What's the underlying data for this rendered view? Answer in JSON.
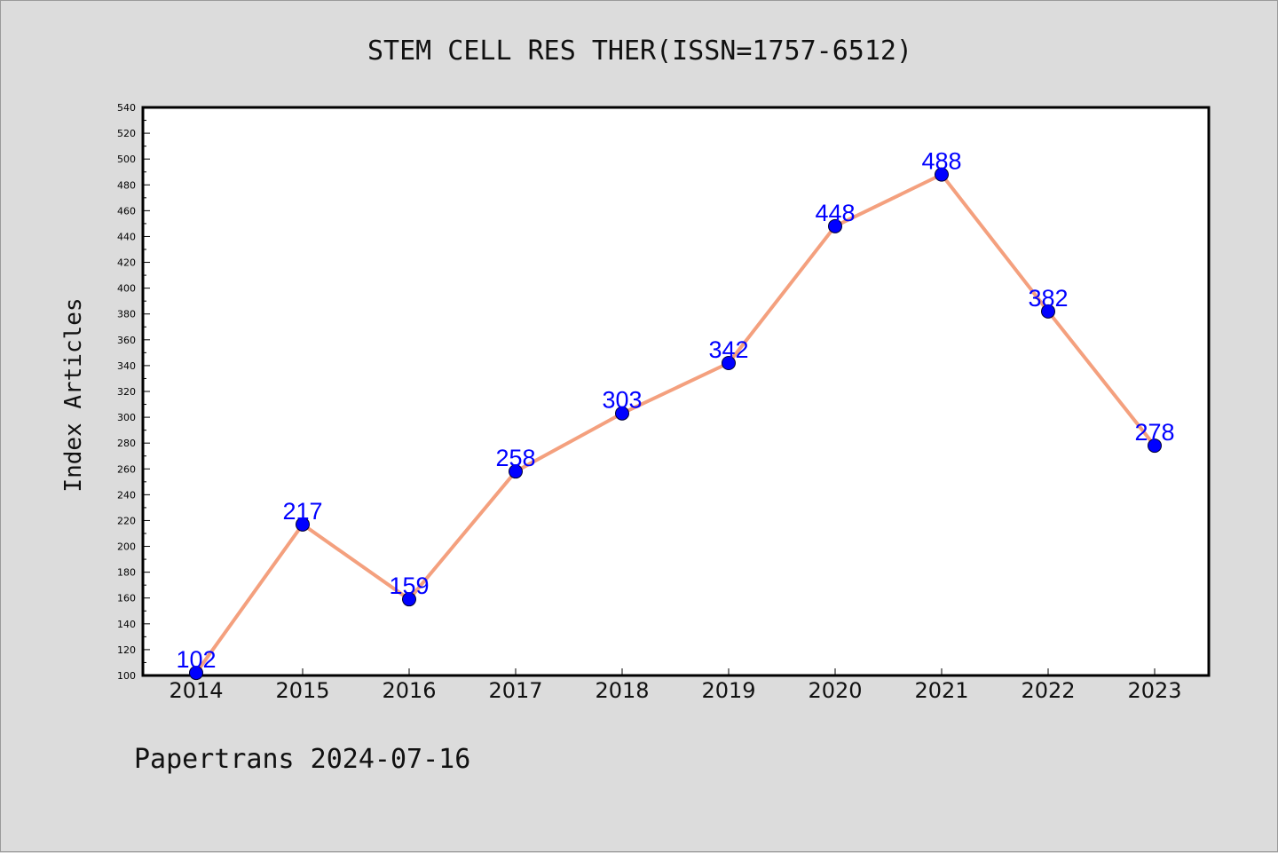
{
  "chart_data": {
    "type": "line",
    "title": "STEM CELL RES THER(ISSN=1757-6512)",
    "ylabel": "Index Articles",
    "xlabel": "",
    "categories": [
      "2014",
      "2015",
      "2016",
      "2017",
      "2018",
      "2019",
      "2020",
      "2021",
      "2022",
      "2023"
    ],
    "series": [
      {
        "values": [
          102,
          217,
          159,
          258,
          303,
          342,
          448,
          488,
          382,
          278
        ]
      }
    ],
    "ylim": [
      100,
      540
    ],
    "ytick_step": 20,
    "data_labels": [
      "102",
      "217",
      "159",
      "258",
      "303",
      "342",
      "448",
      "488",
      "382",
      "278"
    ],
    "grid": false,
    "colors": {
      "line": "#f4a07e",
      "marker": "#0000ff",
      "label": "#0000ff",
      "background": "#dcdcdc",
      "plot_area": "#ffffff"
    }
  },
  "footer": {
    "text": "Papertrans 2024-07-16"
  }
}
